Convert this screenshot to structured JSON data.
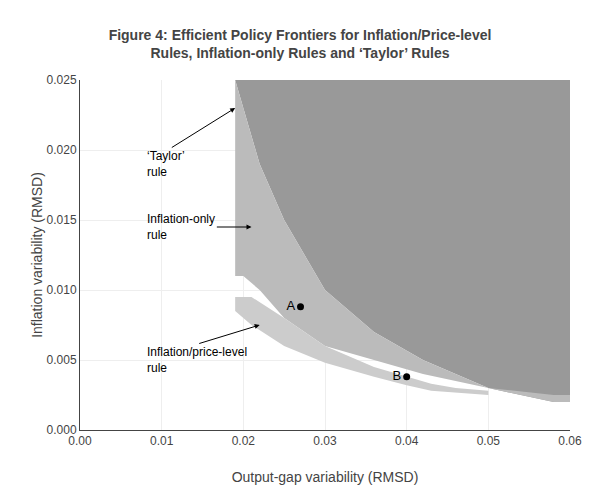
{
  "chart_data": {
    "type": "area",
    "title": "Figure 4: Efficient Policy Frontiers for Inflation/Price-level\nRules, Inflation-only Rules and ‘Taylor’ Rules",
    "x_label": "Output-gap variability (RMSD)",
    "y_label": "Inflation variability (RMSD)",
    "xlim": [
      0.0,
      0.06
    ],
    "ylim": [
      0.0,
      0.025
    ],
    "xticks": [
      {
        "value": 0.0,
        "label": "0.00"
      },
      0.01,
      0.02,
      0.03,
      0.04,
      0.05,
      0.06
    ],
    "yticks": [
      {
        "value": 0.0,
        "label": "0.000"
      },
      0.005,
      {
        "value": 0.01,
        "label": "0.010"
      },
      0.015,
      {
        "value": 0.02,
        "label": "0.020"
      },
      0.025
    ],
    "grid": true,
    "series": [
      {
        "type": "area",
        "color": "#999999",
        "x": [
          0.019,
          0.02,
          0.022,
          0.025,
          0.03,
          0.036,
          0.042,
          0.05,
          0.058,
          0.06,
          0.06,
          0.06,
          0.0,
          0.0,
          0.019
        ],
        "y": [
          0.025,
          0.023,
          0.019,
          0.015,
          0.01,
          0.007,
          0.005,
          0.003,
          0.002,
          0.002,
          0.0,
          0.025,
          0.025,
          0.025,
          0.025
        ]
      },
      {
        "type": "area",
        "color": "#bbbbbb",
        "x": [
          0.019,
          0.02,
          0.022,
          0.025,
          0.03,
          0.036,
          0.042,
          0.05,
          0.058,
          0.06,
          0.06,
          0.058,
          0.05,
          0.042,
          0.036,
          0.03,
          0.025,
          0.022,
          0.02,
          0.019
        ],
        "y": [
          0.011,
          0.011,
          0.01,
          0.008,
          0.006,
          0.005,
          0.004,
          0.003,
          0.0025,
          0.0025,
          0.002,
          0.002,
          0.003,
          0.005,
          0.007,
          0.01,
          0.015,
          0.019,
          0.023,
          0.025
        ]
      },
      {
        "type": "area",
        "color": "#cccccc",
        "x": [
          0.019,
          0.021,
          0.025,
          0.03,
          0.036,
          0.04,
          0.043,
          0.046,
          0.05,
          0.05,
          0.046,
          0.043,
          0.04,
          0.036,
          0.03,
          0.025,
          0.021,
          0.019
        ],
        "y": [
          0.0095,
          0.0095,
          0.008,
          0.006,
          0.0045,
          0.0038,
          0.0033,
          0.003,
          0.0028,
          0.0025,
          0.0027,
          0.0028,
          0.0032,
          0.0038,
          0.0048,
          0.006,
          0.0075,
          0.0085
        ]
      },
      {
        "type": "scatter",
        "color": "#000000",
        "marker": "circle",
        "x": [
          0.027,
          0.04
        ],
        "y": [
          0.0088,
          0.0038
        ],
        "labels": [
          "A",
          "B"
        ]
      }
    ],
    "annotations": [
      {
        "text": "‘Taylor’\nrule",
        "xy": [
          0.019,
          0.023
        ],
        "xytext": [
          0.008,
          0.019
        ]
      },
      {
        "text": "Inflation-only\nrule",
        "xy": [
          0.021,
          0.0145
        ],
        "xytext": [
          0.008,
          0.0145
        ]
      },
      {
        "text": "Inflation/price-level\nrule",
        "xy": [
          0.022,
          0.0075
        ],
        "xytext": [
          0.008,
          0.005
        ]
      }
    ]
  }
}
